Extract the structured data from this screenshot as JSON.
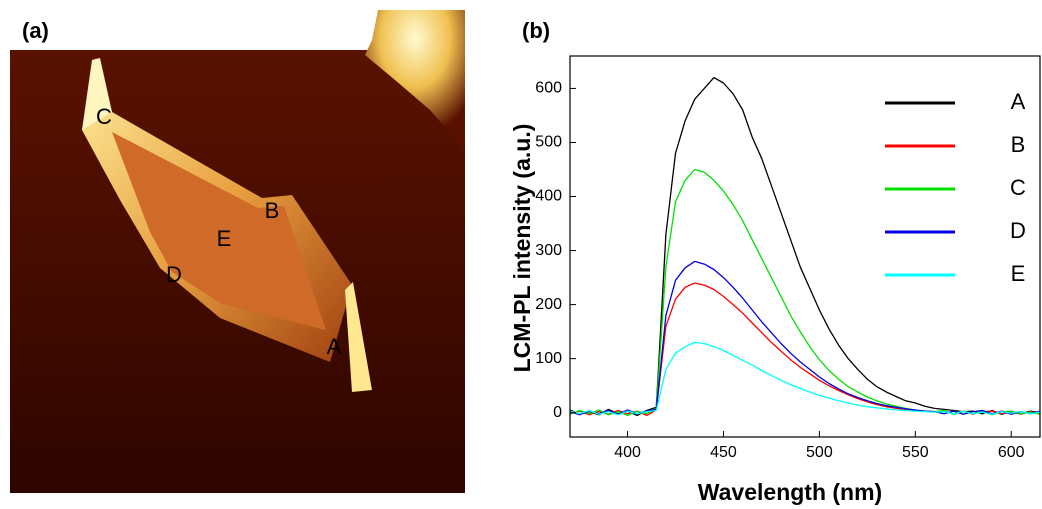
{
  "image_panel": {
    "label": "(a)",
    "annotations": [
      "C",
      "B",
      "E",
      "D",
      "A"
    ]
  },
  "chart_data": {
    "type": "line",
    "panel_label": "(b)",
    "x_label": "Wavelength (nm)",
    "y_label": "LCM-PL intensity (a.u.)",
    "xlim": [
      370,
      615
    ],
    "ylim": [
      -45,
      660
    ],
    "xticks": [
      400,
      450,
      500,
      550,
      600
    ],
    "yticks": [
      0,
      100,
      200,
      300,
      400,
      500,
      600
    ],
    "legend": "upper right",
    "x": [
      370,
      375,
      380,
      385,
      390,
      395,
      400,
      405,
      410,
      415,
      420,
      425,
      430,
      435,
      440,
      445,
      450,
      455,
      460,
      465,
      470,
      475,
      480,
      485,
      490,
      495,
      500,
      505,
      510,
      515,
      520,
      525,
      530,
      535,
      540,
      545,
      550,
      555,
      560,
      565,
      570,
      575,
      580,
      585,
      590,
      595,
      600,
      605,
      610,
      615
    ],
    "series": [
      {
        "name": "A",
        "color": "#000000",
        "values": [
          5,
          -3,
          2,
          -4,
          6,
          -2,
          3,
          -5,
          4,
          10,
          330,
          480,
          540,
          580,
          600,
          620,
          610,
          590,
          560,
          510,
          470,
          420,
          370,
          320,
          270,
          230,
          190,
          155,
          125,
          100,
          80,
          62,
          48,
          38,
          30,
          22,
          18,
          12,
          8,
          6,
          4,
          2,
          3,
          -2,
          4,
          -3,
          2,
          -2,
          3,
          0
        ]
      },
      {
        "name": "B",
        "color": "#ff0000",
        "values": [
          -2,
          3,
          -4,
          2,
          -3,
          4,
          -2,
          3,
          -5,
          5,
          160,
          210,
          232,
          240,
          236,
          228,
          215,
          200,
          184,
          166,
          148,
          130,
          114,
          98,
          84,
          72,
          60,
          50,
          41,
          33,
          26,
          20,
          15,
          11,
          8,
          6,
          4,
          3,
          2,
          3,
          -2,
          3,
          -3,
          2,
          3,
          -2,
          2,
          -3,
          2,
          -2
        ]
      },
      {
        "name": "C",
        "color": "#00e000",
        "values": [
          -3,
          4,
          -2,
          5,
          -4,
          2,
          -5,
          3,
          -2,
          8,
          270,
          390,
          430,
          450,
          445,
          430,
          410,
          385,
          355,
          320,
          285,
          250,
          215,
          180,
          150,
          122,
          98,
          78,
          62,
          48,
          38,
          29,
          22,
          16,
          12,
          8,
          5,
          3,
          2,
          4,
          -3,
          2,
          -2,
          3,
          -4,
          2,
          3,
          -2,
          1,
          -3
        ]
      },
      {
        "name": "D",
        "color": "#0000e0",
        "values": [
          2,
          -4,
          3,
          -2,
          4,
          -3,
          5,
          -2,
          3,
          6,
          180,
          245,
          268,
          280,
          275,
          265,
          250,
          232,
          212,
          190,
          168,
          148,
          128,
          110,
          94,
          80,
          66,
          54,
          44,
          35,
          28,
          22,
          17,
          13,
          10,
          7,
          5,
          3,
          2,
          -2,
          3,
          -3,
          2,
          4,
          -2,
          3,
          -3,
          2,
          -2,
          3
        ]
      },
      {
        "name": "E",
        "color": "#00ffff",
        "values": [
          3,
          -2,
          4,
          -3,
          2,
          -4,
          3,
          -2,
          2,
          4,
          80,
          110,
          122,
          130,
          128,
          122,
          115,
          106,
          97,
          88,
          78,
          69,
          60,
          52,
          45,
          38,
          32,
          27,
          22,
          18,
          14,
          11,
          9,
          7,
          5,
          4,
          3,
          2,
          1,
          2,
          -2,
          3,
          -2,
          1,
          -3,
          2,
          -1,
          2,
          -2,
          1
        ]
      }
    ]
  }
}
